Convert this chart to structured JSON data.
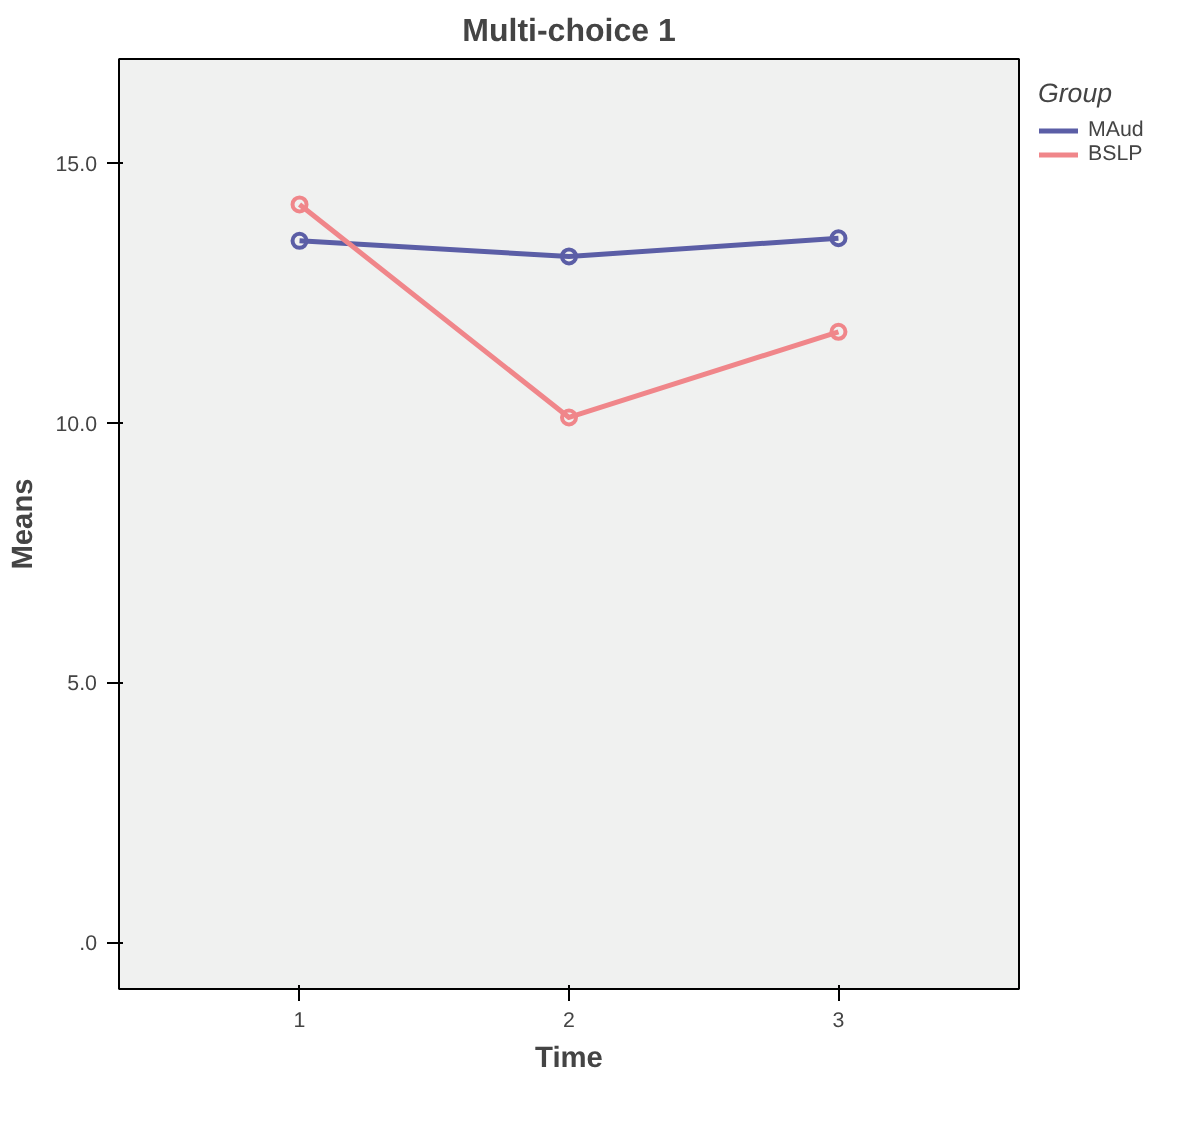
{
  "chart_data": {
    "type": "line",
    "title": "Multi-choice 1",
    "xlabel": "Time",
    "ylabel": "Means",
    "legend_title": "Group",
    "x": [
      1,
      2,
      3
    ],
    "series": [
      {
        "name": "MAud",
        "color": "#5b5ea6",
        "values": [
          13.5,
          13.2,
          13.55
        ]
      },
      {
        "name": "BSLP",
        "color": "#f0868a",
        "values": [
          14.2,
          10.1,
          11.75
        ]
      }
    ],
    "xlim": [
      0.33,
      3.67
    ],
    "ylim": [
      -0.9,
      17
    ],
    "xticks": [
      1,
      2,
      3
    ],
    "yticks": [
      {
        "value": 0,
        "label": ".0"
      },
      {
        "value": 5,
        "label": "5.0"
      },
      {
        "value": 10,
        "label": "10.0"
      },
      {
        "value": 15,
        "label": "15.0"
      }
    ],
    "grid": false,
    "legend": "right",
    "marker": "circle",
    "line_style": "solid"
  }
}
